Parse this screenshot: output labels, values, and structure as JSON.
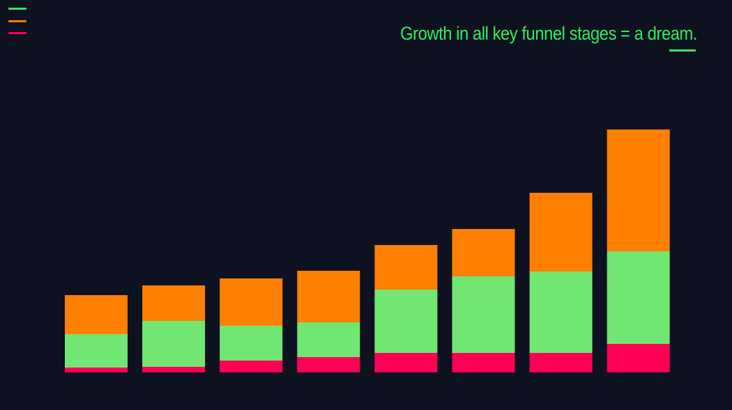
{
  "title": "Growth in all key funnel stages = a dream.",
  "colors": {
    "background": "#0e1120",
    "title": "#2cf05c",
    "accent_green": "#2cf05c",
    "accent_orange": "#ff7f00",
    "accent_red": "#ff0055"
  },
  "menu": {
    "icon": "hamburger-menu-icon",
    "line_colors": [
      "#2cf05c",
      "#ff7f00",
      "#ff0055"
    ]
  },
  "chart_data": {
    "type": "bar",
    "stacked": true,
    "categories": [
      "",
      "",
      "",
      "",
      "",
      "",
      "",
      ""
    ],
    "series": [
      {
        "color": "#ff0055",
        "values": [
          7,
          8,
          17,
          22,
          28,
          28,
          28,
          41
        ]
      },
      {
        "color": "#72e672",
        "values": [
          48,
          66,
          50,
          50,
          91,
          110,
          117,
          133
        ]
      },
      {
        "color": "#ff7f00",
        "values": [
          56,
          51,
          68,
          74,
          64,
          68,
          113,
          175
        ]
      }
    ],
    "ylim": [
      0,
      352
    ],
    "grid": false,
    "legend": "none"
  }
}
